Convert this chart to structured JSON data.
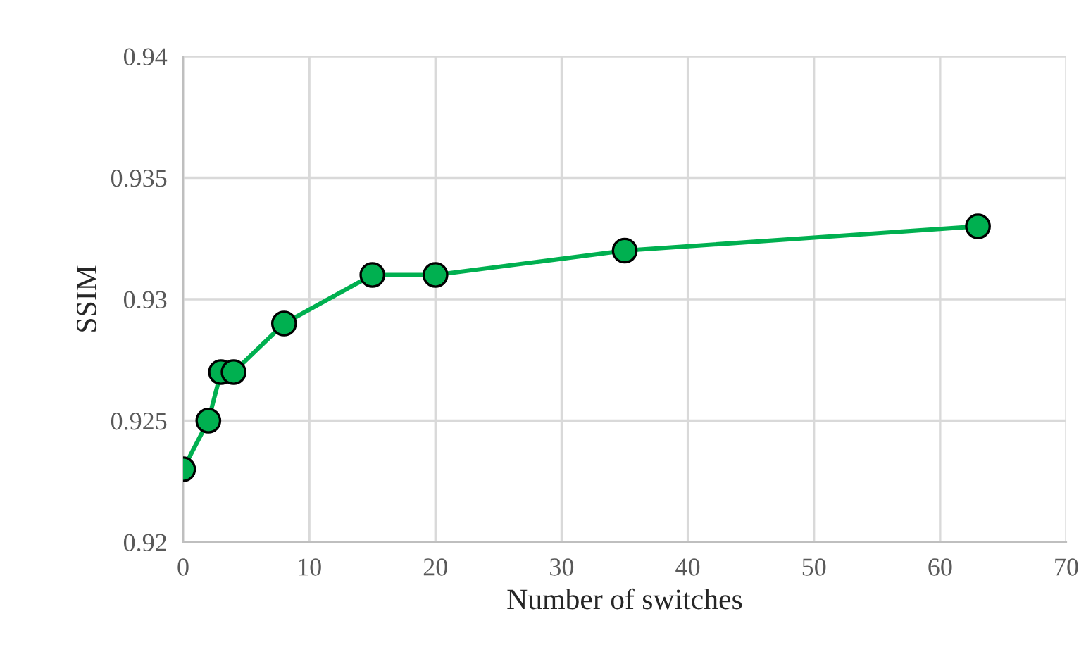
{
  "chart_data": {
    "type": "line",
    "xlabel": "Number of switches",
    "ylabel": "SSIM",
    "x": [
      0,
      2,
      3,
      4,
      8,
      15,
      20,
      35,
      63
    ],
    "series": [
      {
        "color": "#00b050",
        "values": [
          0.923,
          0.925,
          0.927,
          0.927,
          0.929,
          0.931,
          0.931,
          0.932,
          0.933
        ]
      }
    ],
    "xlim": [
      0,
      70
    ],
    "xticks": [
      0,
      10,
      20,
      30,
      40,
      50,
      60,
      70
    ],
    "ylim": [
      0.92,
      0.94
    ],
    "yticks": [
      {
        "value": 0.92,
        "label": "0.92"
      },
      {
        "value": 0.925,
        "label": "0.925"
      },
      {
        "value": 0.93,
        "label": "0.93"
      },
      {
        "value": 0.935,
        "label": "0.935"
      },
      {
        "value": 0.94,
        "label": "0.94"
      }
    ],
    "grid": true,
    "marker": "circle",
    "line_style": "solid"
  }
}
